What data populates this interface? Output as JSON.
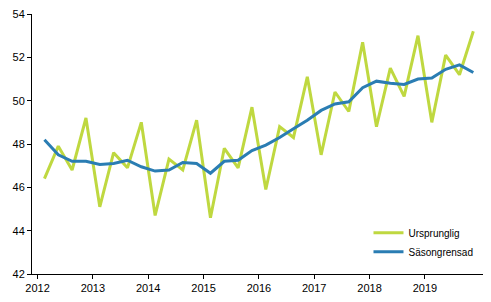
{
  "chart_data": {
    "type": "line",
    "x": [
      2012.125,
      2012.375,
      2012.625,
      2012.875,
      2013.125,
      2013.375,
      2013.625,
      2013.875,
      2014.125,
      2014.375,
      2014.625,
      2014.875,
      2015.125,
      2015.375,
      2015.625,
      2015.875,
      2016.125,
      2016.375,
      2016.625,
      2016.875,
      2017.125,
      2017.375,
      2017.625,
      2017.875,
      2018.125,
      2018.375,
      2018.625,
      2018.875,
      2019.125,
      2019.375,
      2019.625,
      2019.875
    ],
    "series": [
      {
        "name": "Ursprunglig",
        "color": "#bfd840",
        "values": [
          46.4,
          47.9,
          46.8,
          49.2,
          45.1,
          47.6,
          46.9,
          49.0,
          44.7,
          47.3,
          46.8,
          49.1,
          44.6,
          47.8,
          46.9,
          49.7,
          45.9,
          48.8,
          48.3,
          51.1,
          47.5,
          50.4,
          49.5,
          52.7,
          48.8,
          51.5,
          50.2,
          53.0,
          49.0,
          52.1,
          51.2,
          53.2
        ]
      },
      {
        "name": "Säsongrensad",
        "color": "#2a7db3",
        "values": [
          48.2,
          47.5,
          47.2,
          47.2,
          47.05,
          47.1,
          47.25,
          46.95,
          46.75,
          46.8,
          47.15,
          47.1,
          46.65,
          47.2,
          47.25,
          47.7,
          47.95,
          48.3,
          48.7,
          49.1,
          49.55,
          49.85,
          49.95,
          50.6,
          50.9,
          50.8,
          50.75,
          51.0,
          51.05,
          51.45,
          51.65,
          51.3
        ]
      }
    ],
    "xlim": [
      2011.9,
      2020.05
    ],
    "xticks": [
      2012,
      2013,
      2014,
      2015,
      2016,
      2017,
      2018,
      2019
    ],
    "ylim": [
      42,
      54
    ],
    "yticks": [
      42,
      44,
      46,
      48,
      50,
      52,
      54
    ],
    "grid": false,
    "legend": "lower right"
  }
}
